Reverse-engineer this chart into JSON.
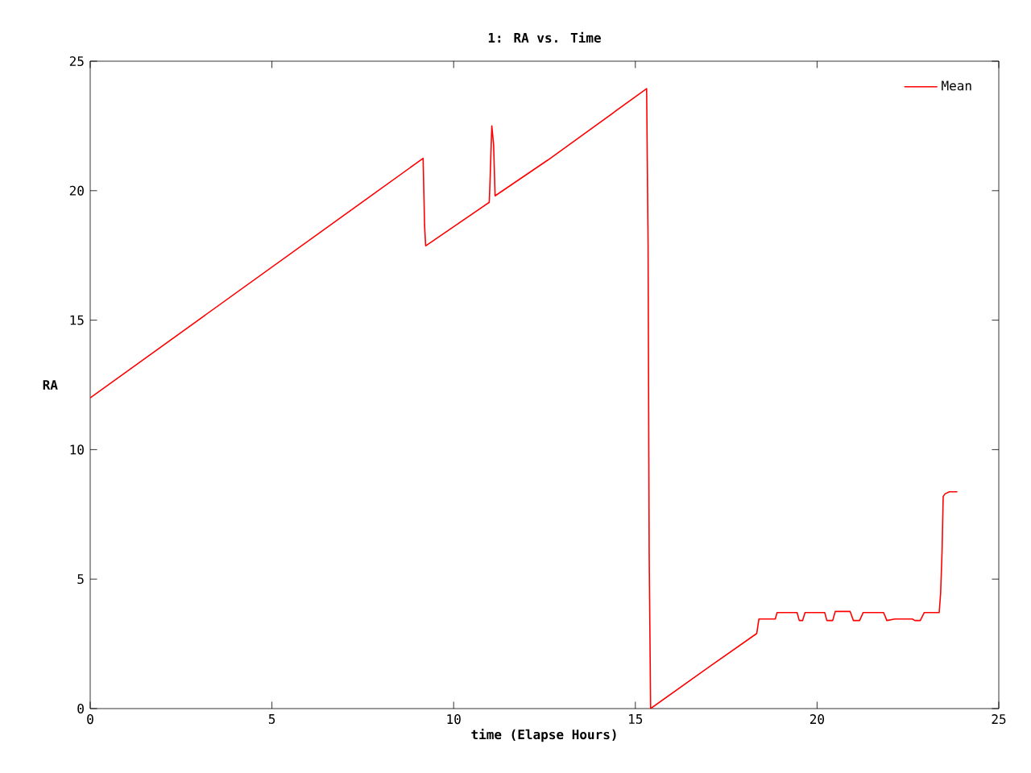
{
  "chart_data": {
    "type": "line",
    "title": "1: RA vs. Time",
    "xlabel": "time (Elapse Hours)",
    "ylabel": "RA",
    "xlim": [
      0,
      25
    ],
    "ylim": [
      0,
      25
    ],
    "xticks": [
      0,
      5,
      10,
      15,
      20,
      25
    ],
    "yticks": [
      0,
      5,
      10,
      15,
      20,
      25
    ],
    "grid": false,
    "legend": "top right",
    "marker": "none",
    "line_style": "solid",
    "series": [
      {
        "name": "Mean",
        "color": "#ff0000",
        "x": [
          0,
          9.16,
          9.2,
          9.23,
          10.98,
          11.0,
          11.05,
          11.1,
          11.14,
          12.6,
          15.31,
          15.35,
          15.38,
          15.42,
          17.04,
          18.34,
          18.4,
          18.85,
          18.9,
          19.45,
          19.51,
          19.6,
          19.67,
          20.21,
          20.27,
          20.43,
          20.5,
          20.91,
          21.0,
          21.17,
          21.27,
          21.83,
          21.92,
          22.14,
          22.62,
          22.69,
          22.84,
          22.95,
          23.36,
          23.4,
          23.44,
          23.47,
          23.52,
          23.64,
          23.86
        ],
        "values": [
          12.0,
          21.25,
          18.66,
          17.87,
          19.55,
          20.3,
          22.5,
          21.77,
          19.8,
          21.19,
          23.94,
          17.9,
          6.03,
          0,
          1.62,
          2.9,
          3.46,
          3.46,
          3.71,
          3.71,
          3.4,
          3.4,
          3.71,
          3.71,
          3.4,
          3.4,
          3.75,
          3.75,
          3.4,
          3.4,
          3.71,
          3.71,
          3.4,
          3.46,
          3.46,
          3.4,
          3.4,
          3.71,
          3.71,
          4.46,
          6.1,
          8.19,
          8.29,
          8.37,
          8.37
        ]
      }
    ]
  }
}
